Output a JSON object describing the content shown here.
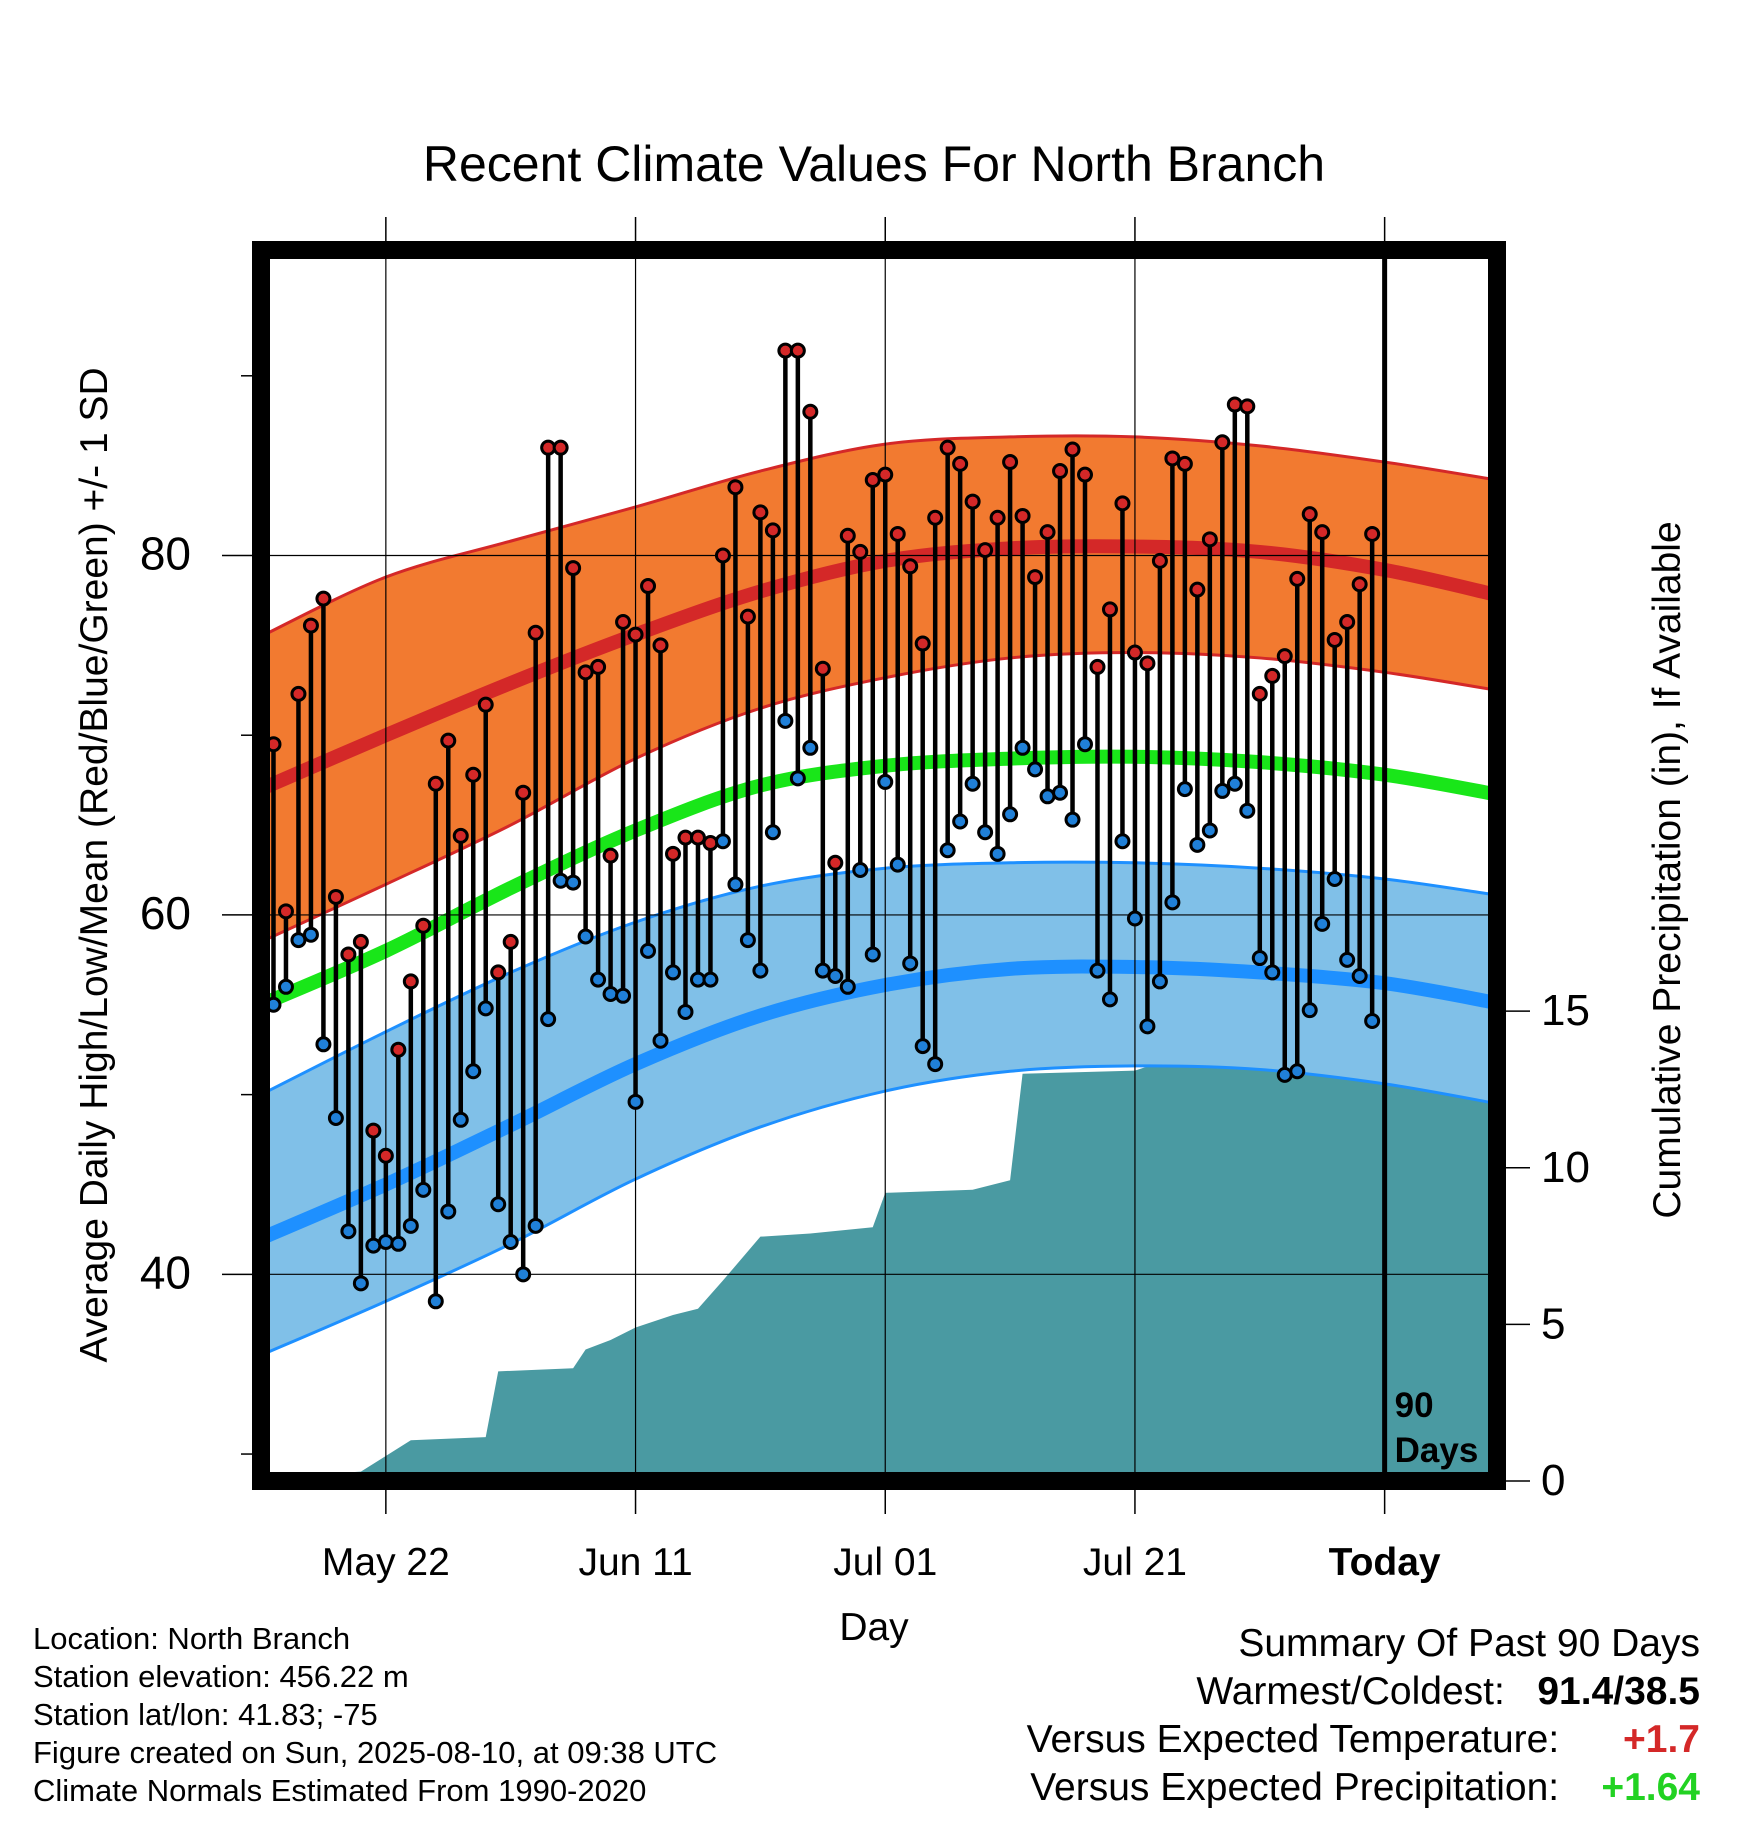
{
  "chart_data": {
    "type": "line",
    "title": "Recent Climate Values For North Branch",
    "xlabel": "Day",
    "ylabel": "Average Daily High/Low/Mean (Red/Blue/Green) +/- 1 SD",
    "ylabel_right": "Cumulative Precipitation (in), If Available",
    "x_ticks": [
      "May 22",
      "Jun 11",
      "Jul 01",
      "Jul 21",
      "Today"
    ],
    "x_range": [
      "2025-05-12",
      "2025-08-19"
    ],
    "today": "2025-08-10",
    "window_label": [
      "90",
      "Days"
    ],
    "y_ticks": [
      40,
      60,
      80
    ],
    "y_range": [
      28.5,
      97.0
    ],
    "y2_ticks": [
      0,
      5,
      10,
      15
    ],
    "y2_range": [
      0,
      39.3
    ],
    "grid": true,
    "colors": {
      "high_band": "#f27a30",
      "high_edge": "#d42828",
      "mean_line": "#19e619",
      "low_band": "#80c0e8",
      "low_edge": "#1e90ff",
      "precip": "#4a9aa2",
      "high_point": "#d42828",
      "low_point": "#2080d8",
      "positive_temp": "#d42828",
      "positive_precip": "#22d222"
    },
    "normals_dates": [
      "2025-05-12",
      "2025-05-22",
      "2025-06-01",
      "2025-06-11",
      "2025-06-21",
      "2025-07-01",
      "2025-07-11",
      "2025-07-21",
      "2025-07-31",
      "2025-08-10",
      "2025-08-19"
    ],
    "normal_high": [
      67.0,
      70.0,
      72.9,
      75.6,
      78.0,
      79.7,
      80.4,
      80.5,
      80.2,
      79.2,
      77.8
    ],
    "normal_high_upper": [
      75.5,
      78.8,
      80.8,
      82.7,
      84.7,
      86.2,
      86.6,
      86.6,
      86.1,
      85.2,
      84.2
    ],
    "normal_high_lower": [
      58.5,
      61.7,
      65.0,
      68.7,
      71.5,
      73.2,
      74.3,
      74.6,
      74.3,
      73.5,
      72.5
    ],
    "normal_mean": [
      55.0,
      58.0,
      61.5,
      64.7,
      67.2,
      68.3,
      68.7,
      68.8,
      68.5,
      67.8,
      66.7
    ],
    "normal_low": [
      42.0,
      45.0,
      48.3,
      51.7,
      54.4,
      56.1,
      57.0,
      57.1,
      56.8,
      56.2,
      55.1
    ],
    "normal_low_upper": [
      50.0,
      53.5,
      56.8,
      59.6,
      61.6,
      62.6,
      62.9,
      62.9,
      62.6,
      62.0,
      61.1
    ],
    "normal_low_lower": [
      35.5,
      38.5,
      41.7,
      45.3,
      48.2,
      50.2,
      51.3,
      51.6,
      51.4,
      50.6,
      49.5
    ],
    "daily": {
      "start_date": "2025-05-12",
      "highs": [
        77.0,
        69.5,
        60.2,
        72.3,
        76.1,
        77.6,
        61.0,
        57.8,
        58.5,
        48.0,
        46.6,
        52.5,
        56.3,
        59.4,
        67.3,
        69.7,
        64.4,
        67.8,
        71.7,
        56.8,
        58.5,
        66.8,
        75.7,
        86.0,
        86.0,
        79.3,
        73.5,
        73.8,
        63.3,
        76.3,
        75.6,
        78.3,
        75.0,
        63.4,
        64.3,
        64.3,
        64.0,
        80.0,
        83.8,
        76.6,
        82.4,
        81.4,
        91.4,
        91.4,
        88.0,
        73.7,
        62.9,
        81.1,
        80.2,
        84.2,
        84.5,
        81.2,
        79.4,
        75.1,
        82.1,
        86.0,
        85.1,
        83.0,
        80.3,
        82.1,
        85.2,
        82.2,
        78.8,
        81.3,
        84.7,
        85.9,
        84.5,
        73.8,
        77.0,
        82.9,
        74.6,
        74.0,
        79.7,
        85.4,
        85.1,
        78.1,
        80.9,
        86.3,
        88.4,
        88.3,
        72.3,
        73.3,
        74.4,
        78.7,
        82.3,
        81.3,
        75.3,
        76.3,
        78.4,
        81.2
      ],
      "lows": [
        42.5,
        55.0,
        56.0,
        58.6,
        58.9,
        52.8,
        48.7,
        42.4,
        39.5,
        41.6,
        41.8,
        41.7,
        42.7,
        44.7,
        38.5,
        43.5,
        48.6,
        51.3,
        54.8,
        43.9,
        41.8,
        40.0,
        42.7,
        54.2,
        61.9,
        61.8,
        58.8,
        56.4,
        55.6,
        55.5,
        49.6,
        58.0,
        53.0,
        56.8,
        54.6,
        56.4,
        56.4,
        64.1,
        61.7,
        58.6,
        56.9,
        64.6,
        70.8,
        67.6,
        69.3,
        56.9,
        56.6,
        56.0,
        62.5,
        57.8,
        67.4,
        62.8,
        57.3,
        52.7,
        51.7,
        63.6,
        65.2,
        67.3,
        64.6,
        63.4,
        65.6,
        69.3,
        68.1,
        66.6,
        66.8,
        65.3,
        69.5,
        56.9,
        55.3,
        64.1,
        59.8,
        53.8,
        56.3,
        60.7,
        67.0,
        63.9,
        64.7,
        66.9,
        67.3,
        65.8,
        57.6,
        56.8,
        51.1,
        51.3,
        54.7,
        59.5,
        62.0,
        57.5,
        56.6,
        54.1
      ]
    },
    "precip_steps": [
      [
        0,
        0.0
      ],
      [
        4,
        0.2
      ],
      [
        8,
        0.3
      ],
      [
        12,
        1.3
      ],
      [
        18,
        1.4
      ],
      [
        19,
        3.5
      ],
      [
        25,
        3.6
      ],
      [
        26,
        4.2
      ],
      [
        28,
        4.5
      ],
      [
        30,
        4.9
      ],
      [
        33,
        5.3
      ],
      [
        35,
        5.5
      ],
      [
        37,
        6.4
      ],
      [
        40,
        7.8
      ],
      [
        44,
        7.9
      ],
      [
        49,
        8.1
      ],
      [
        50,
        9.2
      ],
      [
        57,
        9.3
      ],
      [
        60,
        9.6
      ],
      [
        61,
        13.0
      ],
      [
        70,
        13.1
      ],
      [
        73,
        13.5
      ],
      [
        77,
        14.8
      ],
      [
        82,
        15.0
      ],
      [
        90,
        15.0
      ]
    ]
  },
  "info": {
    "location": "Location: North Branch",
    "elevation": "Station elevation: 456.22 m",
    "latlon": "Station lat/lon: 41.83; -75",
    "created": "Figure created on Sun, 2025-08-10, at 09:38 UTC",
    "normals": "Climate Normals Estimated From 1990-2020"
  },
  "summary": {
    "title": "Summary Of Past 90 Days",
    "warmest_coldest_label": "Warmest/Coldest:",
    "warmest_coldest_value": "91.4/38.5",
    "temp_label": "Versus Expected Temperature:",
    "temp_value": "+1.7",
    "precip_label": "Versus Expected Precipitation:",
    "precip_value": "+1.64"
  }
}
